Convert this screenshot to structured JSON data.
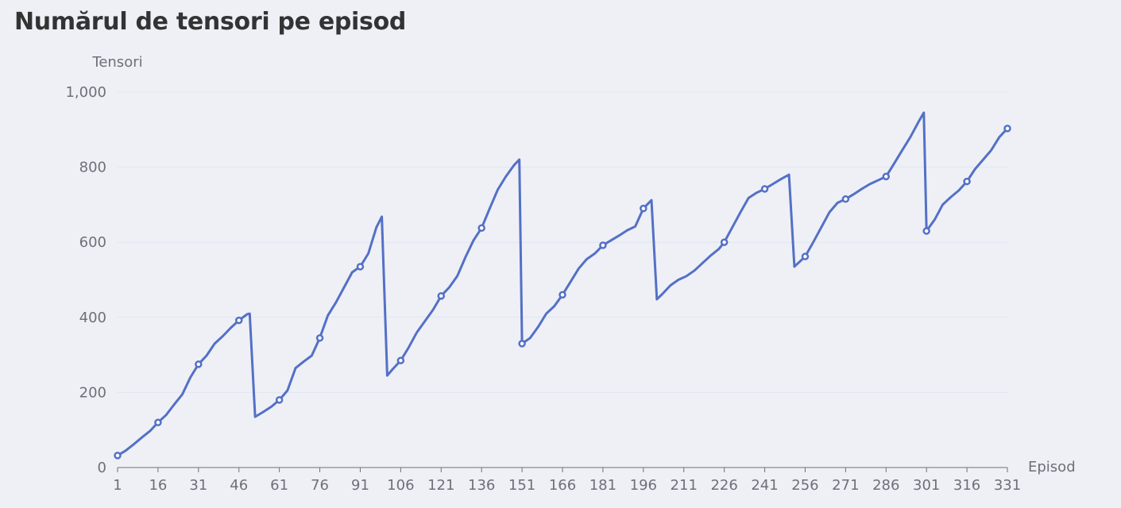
{
  "chart_data": {
    "type": "line",
    "title": "Numărul de tensori pe episod",
    "ylabel": "Tensori",
    "xlabel": "Episod",
    "ylim": [
      0,
      1000
    ],
    "y_ticks": [
      0,
      200,
      400,
      600,
      800,
      1000
    ],
    "y_tick_labels": [
      "0",
      "200",
      "400",
      "600",
      "800",
      "1,000"
    ],
    "x_range": [
      1,
      331
    ],
    "x_ticks": [
      1,
      16,
      31,
      46,
      61,
      76,
      91,
      106,
      121,
      136,
      151,
      166,
      181,
      196,
      211,
      226,
      241,
      256,
      271,
      286,
      301,
      316,
      331
    ],
    "grid": true,
    "line_color": "#5470c6",
    "grid_color": "#e0e6f1",
    "axis_color": "#6e7079",
    "series": [
      {
        "x": [
          1,
          4,
          7,
          10,
          13,
          16,
          19,
          22,
          25,
          28,
          31,
          34,
          37,
          40,
          43,
          46,
          49,
          50,
          52,
          55,
          58,
          61,
          64,
          67,
          70,
          73,
          76,
          79,
          82,
          85,
          88,
          91,
          94,
          97,
          99,
          101,
          103,
          106,
          109,
          112,
          115,
          118,
          121,
          124,
          127,
          130,
          133,
          136,
          139,
          142,
          145,
          148,
          150,
          151,
          154,
          157,
          160,
          163,
          166,
          169,
          172,
          175,
          178,
          181,
          184,
          187,
          190,
          193,
          196,
          199,
          201,
          203,
          206,
          209,
          212,
          215,
          218,
          221,
          224,
          226,
          229,
          232,
          235,
          238,
          241,
          244,
          247,
          250,
          252,
          256,
          259,
          262,
          265,
          268,
          271,
          274,
          277,
          280,
          283,
          286,
          289,
          292,
          295,
          298,
          300,
          301,
          304,
          307,
          310,
          313,
          316,
          319,
          322,
          325,
          328,
          331
        ],
        "y": [
          32,
          45,
          62,
          80,
          97,
          120,
          140,
          168,
          195,
          240,
          275,
          298,
          330,
          350,
          372,
          392,
          408,
          410,
          135,
          148,
          162,
          180,
          205,
          265,
          282,
          298,
          345,
          405,
          440,
          480,
          520,
          535,
          570,
          640,
          668,
          245,
          262,
          285,
          320,
          360,
          390,
          420,
          457,
          480,
          510,
          560,
          605,
          638,
          690,
          740,
          775,
          805,
          820,
          330,
          345,
          375,
          410,
          430,
          460,
          495,
          530,
          555,
          570,
          592,
          605,
          618,
          632,
          642,
          690,
          712,
          448,
          462,
          485,
          500,
          510,
          525,
          545,
          565,
          582,
          600,
          640,
          680,
          718,
          732,
          742,
          755,
          768,
          780,
          535,
          562,
          600,
          640,
          680,
          705,
          715,
          728,
          742,
          755,
          765,
          775,
          810,
          845,
          880,
          920,
          945,
          630,
          660,
          700,
          720,
          738,
          762,
          795,
          820,
          845,
          880,
          903
        ]
      }
    ]
  }
}
